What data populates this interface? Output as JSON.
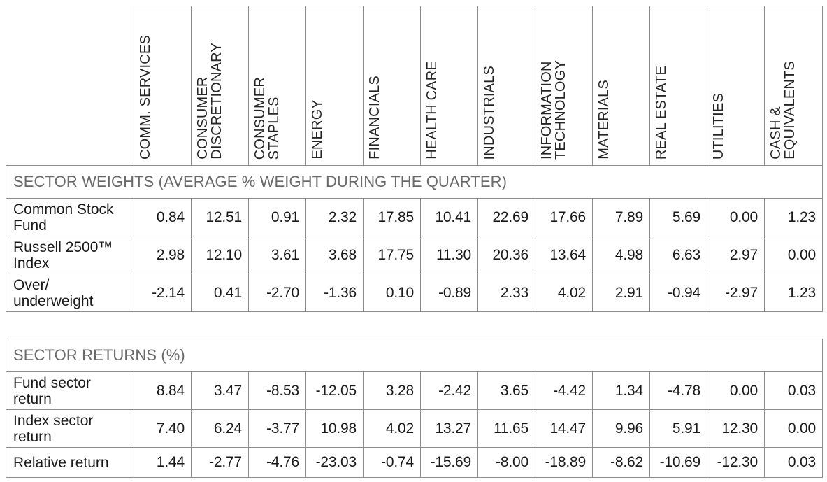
{
  "sector_headers": [
    "COMM. SERVICES",
    "CONSUMER\nDISCRETIONARY",
    "CONSUMER\nSTAPLES",
    "ENERGY",
    "FINANCIALS",
    "HEALTH CARE",
    "INDUSTRIALS",
    "INFORMATION\nTECHNOLOGY",
    "MATERIALS",
    "REAL ESTATE",
    "UTILITIES",
    "CASH &\nEQUIVALENTS"
  ],
  "weights": {
    "title": "SECTOR WEIGHTS (AVERAGE % WEIGHT DURING THE QUARTER)",
    "rows": [
      {
        "label": "Common Stock\nFund",
        "values": [
          "0.84",
          "12.51",
          "0.91",
          "2.32",
          "17.85",
          "10.41",
          "22.69",
          "17.66",
          "7.89",
          "5.69",
          "0.00",
          "1.23"
        ]
      },
      {
        "label": "Russell 2500™\nIndex",
        "values": [
          "2.98",
          "12.10",
          "3.61",
          "3.68",
          "17.75",
          "11.30",
          "20.36",
          "13.64",
          "4.98",
          "6.63",
          "2.97",
          "0.00"
        ]
      },
      {
        "label": "Over/\nunderweight",
        "values": [
          "-2.14",
          "0.41",
          "-2.70",
          "-1.36",
          "0.10",
          "-0.89",
          "2.33",
          "4.02",
          "2.91",
          "-0.94",
          "-2.97",
          "1.23"
        ]
      }
    ]
  },
  "returns": {
    "title": "SECTOR RETURNS (%)",
    "rows": [
      {
        "label": "Fund sector\nreturn",
        "values": [
          "8.84",
          "3.47",
          "-8.53",
          "-12.05",
          "3.28",
          "-2.42",
          "3.65",
          "-4.42",
          "1.34",
          "-4.78",
          "0.00",
          "0.03"
        ]
      },
      {
        "label": "Index sector\nreturn",
        "values": [
          "7.40",
          "6.24",
          "-3.77",
          "10.98",
          "4.02",
          "13.27",
          "11.65",
          "14.47",
          "9.96",
          "5.91",
          "12.30",
          "0.00"
        ]
      },
      {
        "label": "Relative return",
        "values": [
          "1.44",
          "-2.77",
          "-4.76",
          "-23.03",
          "-0.74",
          "-15.69",
          "-8.00",
          "-18.89",
          "-8.62",
          "-10.69",
          "-12.30",
          "0.03"
        ]
      }
    ]
  }
}
